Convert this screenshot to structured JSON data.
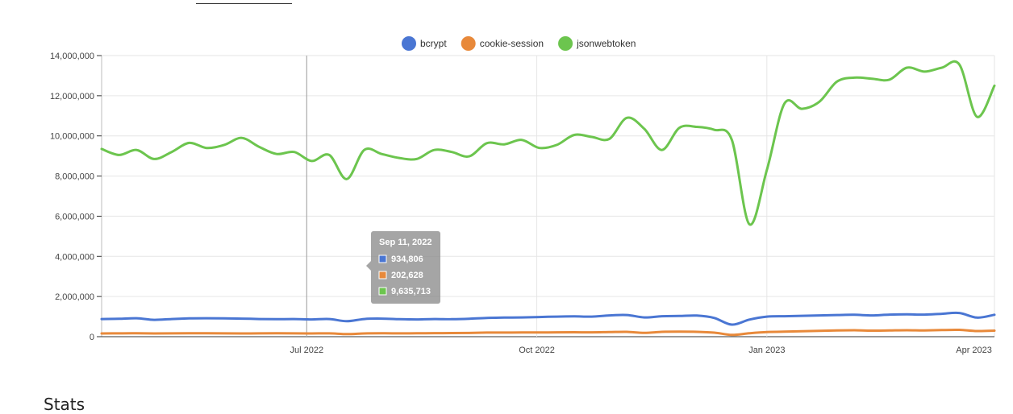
{
  "header": {
    "stub_label": ""
  },
  "section": {
    "heading": "Stats"
  },
  "chart_data": {
    "type": "line",
    "title": "",
    "xlabel": "",
    "ylabel": "",
    "ylim": [
      0,
      14000000
    ],
    "yticks": [
      "0",
      "2,000,000",
      "4,000,000",
      "6,000,000",
      "8,000,000",
      "10,000,000",
      "12,000,000",
      "14,000,000"
    ],
    "xticks": [
      {
        "label": "Jul 2022",
        "date": "2022-07-01"
      },
      {
        "label": "Oct 2022",
        "date": "2022-10-01"
      },
      {
        "label": "Jan 2023",
        "date": "2023-01-01"
      },
      {
        "label": "Apr 2023",
        "date": "2023-04-01"
      }
    ],
    "x_range": [
      "2022-04-10",
      "2023-04-02"
    ],
    "grid": true,
    "legend_position": "top-center",
    "x": [
      "2022-04-10",
      "2022-04-17",
      "2022-04-24",
      "2022-05-01",
      "2022-05-08",
      "2022-05-15",
      "2022-05-22",
      "2022-05-29",
      "2022-06-05",
      "2022-06-12",
      "2022-06-19",
      "2022-06-26",
      "2022-07-03",
      "2022-07-10",
      "2022-07-17",
      "2022-07-24",
      "2022-07-31",
      "2022-08-07",
      "2022-08-14",
      "2022-08-21",
      "2022-08-28",
      "2022-09-04",
      "2022-09-11",
      "2022-09-18",
      "2022-09-25",
      "2022-10-02",
      "2022-10-09",
      "2022-10-16",
      "2022-10-23",
      "2022-10-30",
      "2022-11-06",
      "2022-11-13",
      "2022-11-20",
      "2022-11-27",
      "2022-12-04",
      "2022-12-11",
      "2022-12-18",
      "2022-12-25",
      "2023-01-01",
      "2023-01-08",
      "2023-01-15",
      "2023-01-22",
      "2023-01-29",
      "2023-02-05",
      "2023-02-12",
      "2023-02-19",
      "2023-02-26",
      "2023-03-05",
      "2023-03-12",
      "2023-03-19",
      "2023-03-26",
      "2023-04-02"
    ],
    "series": [
      {
        "name": "bcrypt",
        "color": "#4a76d3",
        "values": [
          880000,
          890000,
          920000,
          840000,
          880000,
          910000,
          920000,
          910000,
          900000,
          880000,
          870000,
          880000,
          860000,
          880000,
          770000,
          880000,
          900000,
          870000,
          860000,
          880000,
          870000,
          890000,
          934806,
          950000,
          960000,
          980000,
          1000000,
          1010000,
          1000000,
          1060000,
          1080000,
          960000,
          1020000,
          1030000,
          1050000,
          930000,
          600000,
          850000,
          1000000,
          1020000,
          1040000,
          1060000,
          1080000,
          1090000,
          1060000,
          1100000,
          1110000,
          1100000,
          1140000,
          1180000,
          950000,
          1090000
        ]
      },
      {
        "name": "cookie-session",
        "color": "#e8893a",
        "values": [
          160000,
          165000,
          170000,
          160000,
          165000,
          170000,
          168000,
          165000,
          160000,
          165000,
          170000,
          165000,
          160000,
          165000,
          130000,
          160000,
          170000,
          165000,
          170000,
          175000,
          180000,
          185000,
          202628,
          205000,
          210000,
          210000,
          215000,
          220000,
          215000,
          230000,
          240000,
          190000,
          240000,
          250000,
          240000,
          200000,
          90000,
          170000,
          230000,
          250000,
          270000,
          290000,
          310000,
          320000,
          300000,
          310000,
          320000,
          310000,
          330000,
          340000,
          280000,
          300000
        ]
      },
      {
        "name": "jsonwebtoken",
        "color": "#6cc54e",
        "values": [
          9350000,
          9050000,
          9300000,
          8850000,
          9200000,
          9650000,
          9400000,
          9550000,
          9900000,
          9450000,
          9100000,
          9200000,
          8750000,
          9050000,
          7850000,
          9300000,
          9100000,
          8900000,
          8850000,
          9300000,
          9200000,
          8980000,
          9635713,
          9580000,
          9800000,
          9400000,
          9550000,
          10050000,
          9950000,
          9850000,
          10900000,
          10350000,
          9300000,
          10400000,
          10450000,
          10300000,
          9800000,
          5600000,
          8300000,
          11600000,
          11350000,
          11700000,
          12700000,
          12900000,
          12850000,
          12800000,
          13400000,
          13200000,
          13400000,
          13550000,
          10950000,
          12500000
        ]
      }
    ],
    "tooltip": {
      "date": "Sep 11, 2022",
      "values": [
        "934,806",
        "202,628",
        "9,635,713"
      ]
    }
  }
}
